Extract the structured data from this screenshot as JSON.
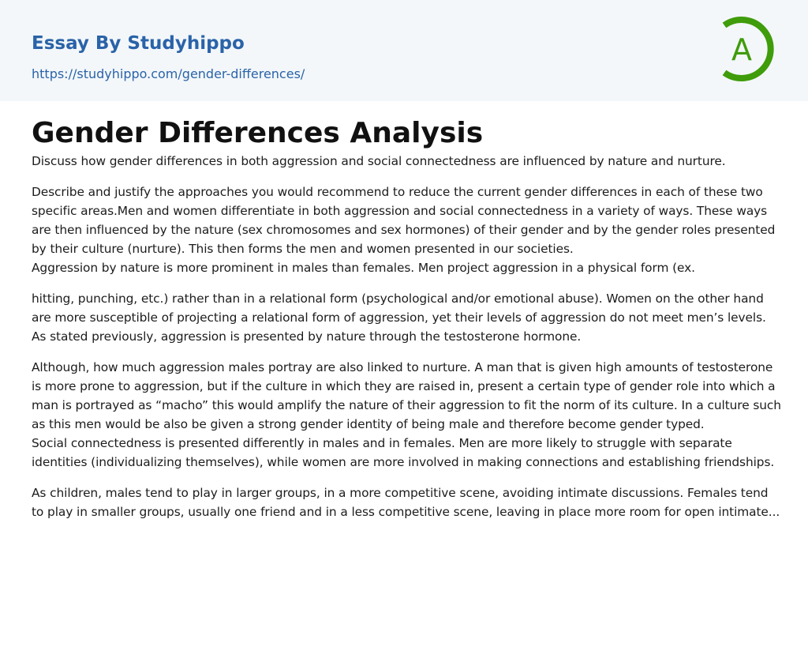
{
  "header": {
    "brand": "Essay By Studyhippo",
    "url": "https://studyhippo.com/gender-differences/",
    "logo_letter": "A",
    "logo_color": "#3f9c0a",
    "link_color": "#2a63a8"
  },
  "article": {
    "title": "Gender Differences Analysis",
    "paragraphs": [
      "Discuss how gender differences in both aggression and social connectedness are influenced by nature and nurture.",
      "Describe and justify the approaches you would recommend to reduce the current gender differences in each of these two specific areas.Men and women differentiate in both aggression and social connectedness in a variety of ways. These ways are then influenced by the nature (sex chromosomes and sex hormones) of their gender and by the gender roles presented by their culture (nurture). This then forms the men and women presented in our societies.\nAggression by nature is more prominent in males than females. Men project aggression in a physical form (ex.",
      "hitting, punching, etc.) rather than in a relational form (psychological and/or emotional abuse). Women on the other hand are more susceptible of projecting a relational form of aggression, yet their levels of aggression do not meet men’s levels. As stated previously, aggression is presented by nature through the testosterone hormone.",
      "Although, how much aggression males portray are also linked to nurture. A man that is given high amounts of testosterone is more prone to aggression, but if the culture in which they are raised in, present a certain type of gender role into which a man is portrayed as “macho” this would amplify the nature of their aggression to fit the norm of its culture. In a culture such as this men would be also be given a strong gender identity of being male and therefore become gender typed.\nSocial connectedness is presented differently in males and in females. Men are more likely to struggle with separate identities (individualizing themselves), while women are more involved in making connections and establishing friendships.",
      "As children, males tend to play in larger groups, in a more competitive scene, avoiding intimate discussions. Females tend to play in smaller groups, usually one friend and in a less competitive scene, leaving in place more room for open intimate..."
    ]
  }
}
